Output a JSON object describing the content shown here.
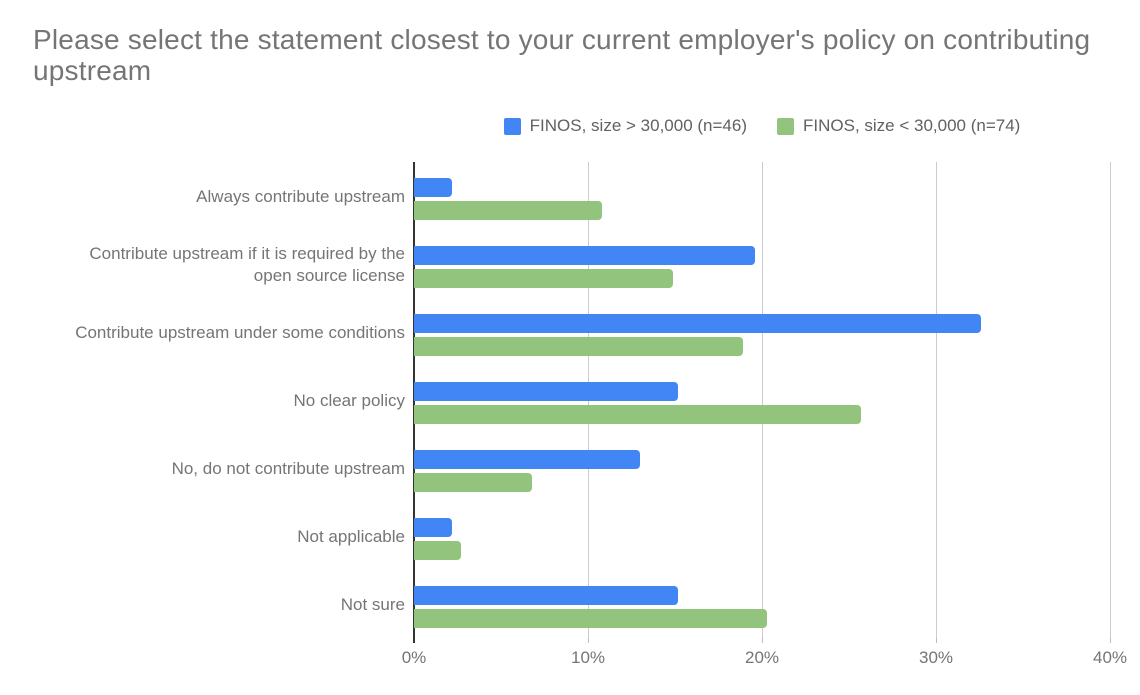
{
  "title": "Please select the statement closest to your current employer's policy on contributing upstream",
  "colors": {
    "series_blue": "#4285f4",
    "series_green": "#93c47d",
    "gridline": "#cccccc",
    "axis_line": "#333333",
    "text": "#757575"
  },
  "chart_data": {
    "type": "bar",
    "orientation": "horizontal",
    "title": "Please select the statement closest to your current employer's policy on contributing upstream",
    "xlabel": "",
    "ylabel": "",
    "grid": true,
    "legend_position": "top-center",
    "xlim": [
      0,
      40
    ],
    "x_tick_unit": "%",
    "categories": [
      "Always contribute upstream",
      "Contribute upstream if it is required by the open source license",
      "Contribute upstream under some conditions",
      "No clear policy",
      "No, do not contribute upstream",
      "Not applicable",
      "Not sure"
    ],
    "series": [
      {
        "name": "FINOS, size > 30,000 (n=46)",
        "color": "#4285f4",
        "values": [
          2.2,
          19.6,
          32.6,
          15.2,
          13.0,
          2.2,
          15.2
        ]
      },
      {
        "name": "FINOS, size < 30,000 (n=74)",
        "color": "#93c47d",
        "values": [
          10.8,
          14.9,
          18.9,
          25.7,
          6.8,
          2.7,
          20.3
        ]
      }
    ],
    "x_ticks": [
      {
        "value": 0,
        "label": "0%"
      },
      {
        "value": 10,
        "label": "10%"
      },
      {
        "value": 20,
        "label": "20%"
      },
      {
        "value": 30,
        "label": "30%"
      },
      {
        "value": 40,
        "label": "40%"
      }
    ]
  }
}
